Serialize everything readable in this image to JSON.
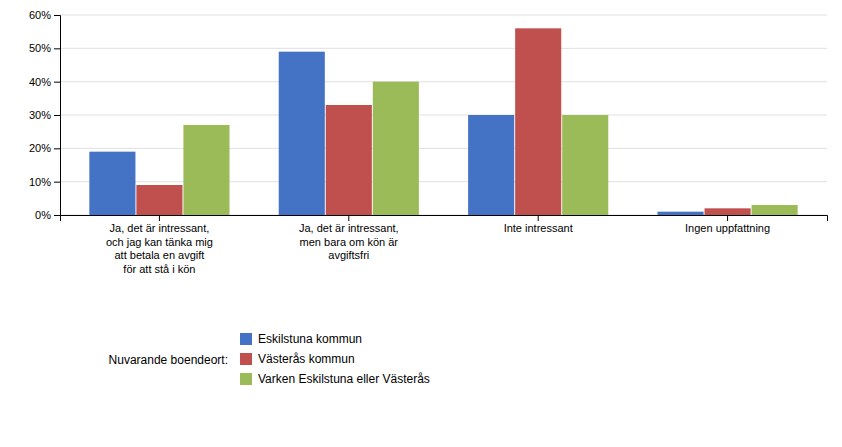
{
  "chart_data": {
    "type": "bar",
    "categories": [
      "Ja, det är intressant,\noch jag kan tänka mig\natt betala en avgift\nför att stå i kön",
      "Ja, det är intressant,\nmen bara om kön är\navgiftsfri",
      "Inte intressant",
      "Ingen uppfattning"
    ],
    "series": [
      {
        "name": "Eskilstuna kommun",
        "color": "#4472C4",
        "values": [
          0.19,
          0.49,
          0.3,
          0.01
        ]
      },
      {
        "name": "Västerås kommun",
        "color": "#C0504D",
        "values": [
          0.09,
          0.33,
          0.56,
          0.02
        ]
      },
      {
        "name": "Varken Eskilstuna eller Västerås",
        "color": "#9BBB59",
        "values": [
          0.27,
          0.4,
          0.3,
          0.03
        ]
      }
    ],
    "ylim": [
      0,
      0.6
    ],
    "yticks": [
      {
        "value": 0.0,
        "label": "0%"
      },
      {
        "value": 0.1,
        "label": "10%"
      },
      {
        "value": 0.2,
        "label": "20%"
      },
      {
        "value": 0.3,
        "label": "30%"
      },
      {
        "value": 0.4,
        "label": "40%"
      },
      {
        "value": 0.5,
        "label": "50%"
      },
      {
        "value": 0.6,
        "label": "60%"
      }
    ],
    "grid": true,
    "legend": "bottom",
    "legend_title": "Nuvarande boendeort:"
  }
}
